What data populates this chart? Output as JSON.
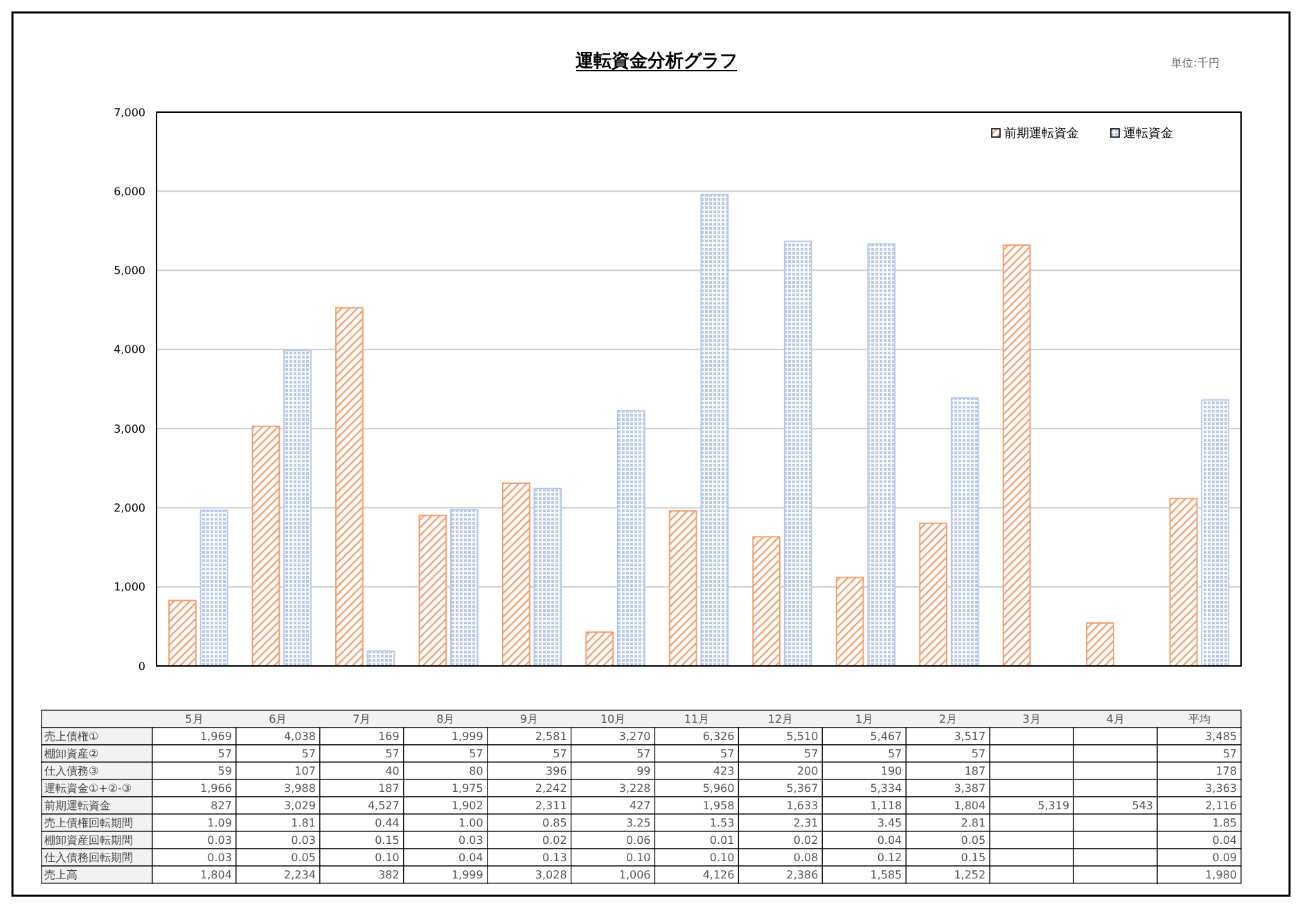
{
  "chart_data": {
    "type": "bar",
    "title": "運転資金分析グラフ",
    "categories": [
      "5月",
      "6月",
      "7月",
      "8月",
      "9月",
      "10月",
      "11月",
      "12月",
      "1月",
      "2月",
      "3月",
      "4月",
      "平均"
    ],
    "series": [
      {
        "name": "前期運転資金",
        "color": "#f0a070",
        "values": [
          827,
          3029,
          4527,
          1902,
          2311,
          427,
          1958,
          1633,
          1118,
          1804,
          5319,
          543,
          2116
        ]
      },
      {
        "name": "運転資金",
        "color": "#b8c8e8",
        "values": [
          1966,
          3988,
          187,
          1975,
          2242,
          3228,
          5960,
          5367,
          5334,
          3387,
          null,
          null,
          3363
        ]
      }
    ],
    "ylim": [
      0,
      7000
    ],
    "yticks": [
      {
        "value": 0,
        "label": "0"
      },
      {
        "value": 1000,
        "label": "1,000"
      },
      {
        "value": 2000,
        "label": "2,000"
      },
      {
        "value": 3000,
        "label": "3,000"
      },
      {
        "value": 4000,
        "label": "4,000"
      },
      {
        "value": 5000,
        "label": "5,000"
      },
      {
        "value": 6000,
        "label": "6,000"
      },
      {
        "value": 7000,
        "label": "7,000"
      }
    ],
    "grid": "y",
    "legend": "top right",
    "tick_labels": "y",
    "annotations": [
      "単位:千円",
      "売上債権①\t1,969\t4,038\t169\t1,999\t2,581\t3,270\t6,326\t5,510\t5,467\t3,517\t\t\t3,485",
      "棚卸資産②\t57\t57\t57\t57\t57\t57\t57\t57\t57\t57\t\t\t57",
      "仕入債務③\t59\t107\t40\t80\t396\t99\t423\t200\t190\t187\t\t\t178",
      "運転資金①+②-③\t1,966\t3,988\t187\t1,975\t2,242\t3,228\t5,960\t5,367\t5,334\t3,387\t\t\t3,363",
      "前期運転資金\t827\t3,029\t4,527\t1,902\t2,311\t427\t1,958\t1,633\t1,118\t1,804\t5,319\t543\t2,116",
      "売上債権回転期間\t1.09\t1.81\t0.44\t1.00\t0.85\t3.25\t1.53\t2.31\t3.45\t2.81\t\t\t1.85",
      "棚卸資産回転期間\t0.03\t0.03\t0.15\t0.03\t0.02\t0.06\t0.01\t0.02\t0.04\t0.05\t\t\t0.04",
      "仕入債務回転期間\t0.03\t0.05\t0.10\t0.04\t0.13\t0.10\t0.10\t0.08\t0.12\t0.15\t\t\t0.09",
      "売上高\t1,804\t2,234\t382\t1,999\t3,028\t1,006\t4,126\t2,386\t1,585\t1,252\t\t\t1,980"
    ]
  }
}
